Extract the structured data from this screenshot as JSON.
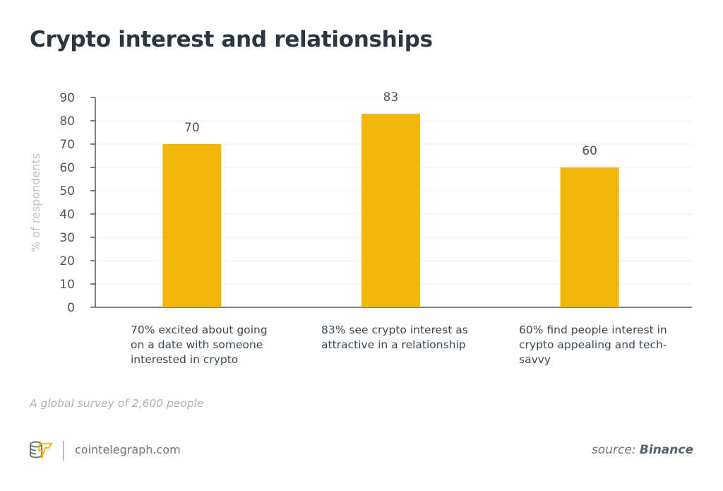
{
  "title": "Crypto interest and relationships",
  "chart_data": {
    "type": "bar",
    "categories": [
      "70% excited about going on a date with someone interested in crypto",
      "83% see crypto interest as attractive in a relationship",
      "60% find people interest in crypto appealing and tech-savvy"
    ],
    "values": [
      70,
      83,
      60
    ],
    "data_labels": [
      "70",
      "83",
      "60"
    ],
    "ylabel": "% of respondents",
    "ylim": [
      0,
      90
    ],
    "yticks": [
      0,
      10,
      20,
      30,
      40,
      50,
      60,
      70,
      80,
      90
    ],
    "grid": true,
    "bar_color": "#f3b70b"
  },
  "note": "A global survey of 2,600 people",
  "footer": {
    "brand": "cointelegraph.com",
    "source_prefix": "source:",
    "source_name": "Binance"
  }
}
